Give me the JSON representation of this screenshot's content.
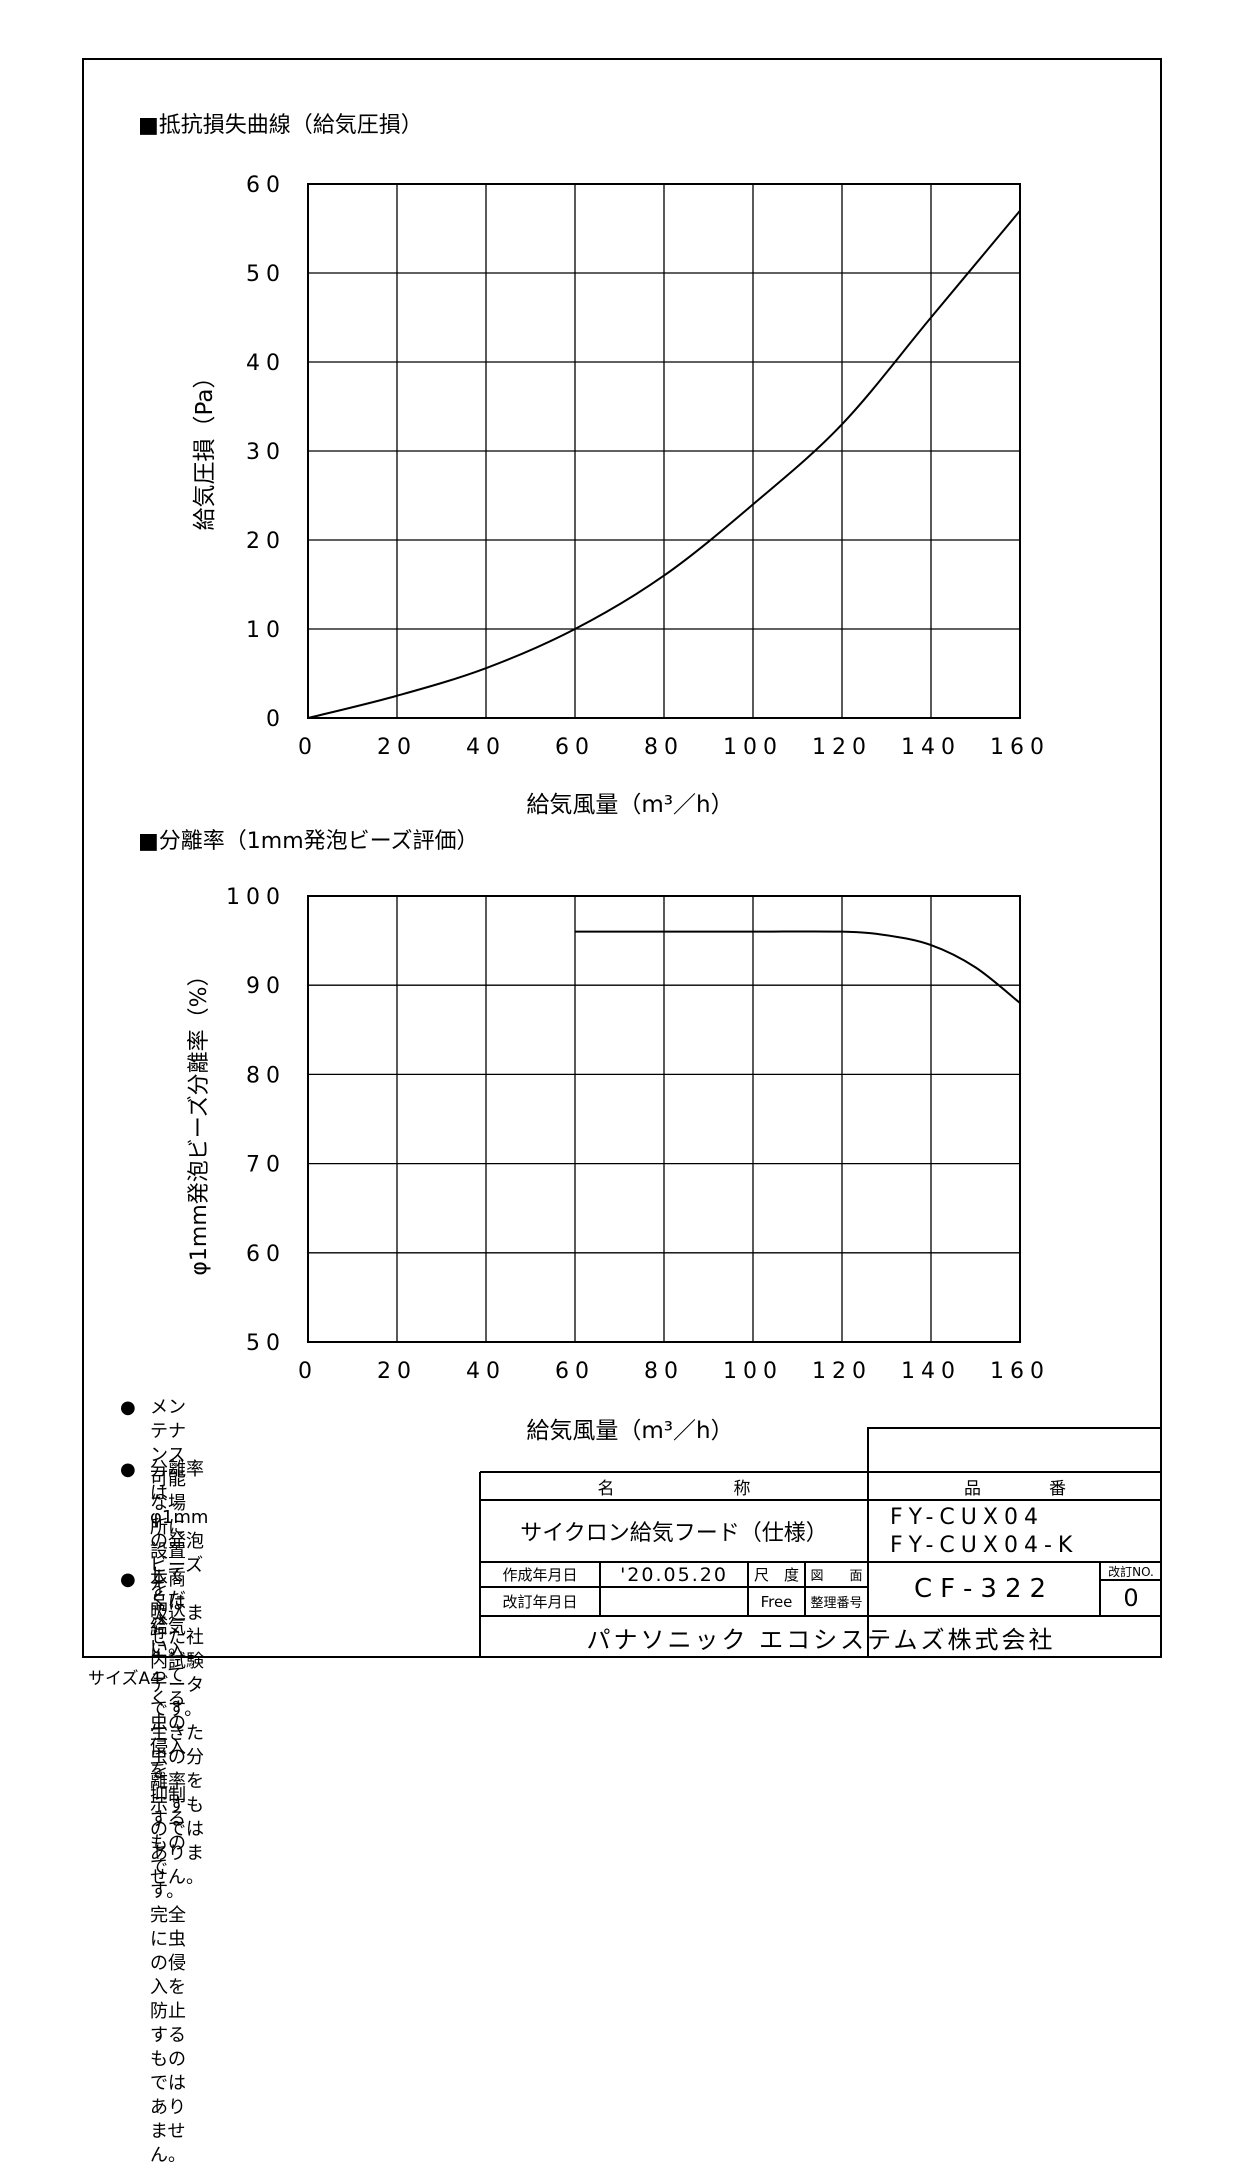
{
  "charts": {
    "pressure": {
      "title": "■抵抗損失曲線（給気圧損）",
      "xlabel": "給気風量（m³／h）",
      "ylabel": "給気圧損（Pa）"
    },
    "separation": {
      "title": "■分離率（1mm発泡ビーズ評価）",
      "xlabel": "給気風量（m³／h）",
      "ylabel": "φ1mm発泡ビーズ分離率（%）"
    }
  },
  "chart_data": [
    {
      "type": "line",
      "title": "■抵抗損失曲線（給気圧損）",
      "xlabel": "給気風量（m³／h）",
      "ylabel": "給気圧損（Pa）",
      "xlim": [
        0,
        160
      ],
      "ylim": [
        0,
        60
      ],
      "xticks": [
        "0",
        "20",
        "40",
        "60",
        "80",
        "100",
        "120",
        "140",
        "160"
      ],
      "yticks": [
        "0",
        "10",
        "20",
        "30",
        "40",
        "50",
        "60"
      ],
      "grid": true,
      "x": [
        0,
        20,
        40,
        60,
        80,
        100,
        120,
        140,
        160
      ],
      "y": [
        0,
        2.5,
        5.6,
        10,
        16,
        24,
        33,
        45,
        57
      ]
    },
    {
      "type": "line",
      "title": "■分離率（1mm発泡ビーズ評価）",
      "xlabel": "給気風量（m³／h）",
      "ylabel": "φ1mm発泡ビーズ分離率（%）",
      "xlim": [
        0,
        160
      ],
      "ylim": [
        50,
        100
      ],
      "xticks": [
        "0",
        "20",
        "40",
        "60",
        "80",
        "100",
        "120",
        "140",
        "160"
      ],
      "yticks": [
        "50",
        "60",
        "70",
        "80",
        "90",
        "100"
      ],
      "grid": true,
      "x": [
        60,
        80,
        100,
        120,
        130,
        140,
        150,
        160
      ],
      "y": [
        96,
        96,
        96,
        96,
        95.6,
        94.5,
        92,
        88
      ]
    }
  ],
  "notes": [
    {
      "bullet": "●",
      "lines": [
        "メンテナンス可能な場所に設置して",
        "ください。"
      ]
    },
    {
      "bullet": "●",
      "lines": [
        "分離率はφ1mmの発泡ビーズを",
        "吸込ませた社内試験データです。",
        "生きた虫の分離率を示すものでは",
        "ありません。"
      ]
    },
    {
      "bullet": "●",
      "lines": [
        "本商品は給気に入ってくる虫の侵入を",
        "抑制するものです。完全に虫の侵入を",
        "防止するものではありません。"
      ]
    }
  ],
  "title_block": {
    "name_header": "名　　　　　　　称",
    "name": "サイクロン給気フード（仕様）",
    "part_header": "品　　　　番",
    "part_numbers": [
      "FY-CUX04",
      "FY-CUX04-K"
    ],
    "created_label": "作成年月日",
    "created_date": "'20.05.20",
    "revised_label": "改訂年月日",
    "revised_date": "",
    "scale_label": "尺　度",
    "scale_value": "Free",
    "drawing_label": "図　　面",
    "drawing_label2": "整理番号",
    "drawing_number": "CF-322",
    "revision_label": "改訂NO.",
    "revision_number": "0",
    "company": "パナソニック エコシステムズ株式会社"
  },
  "paper_size": "サイズA4"
}
